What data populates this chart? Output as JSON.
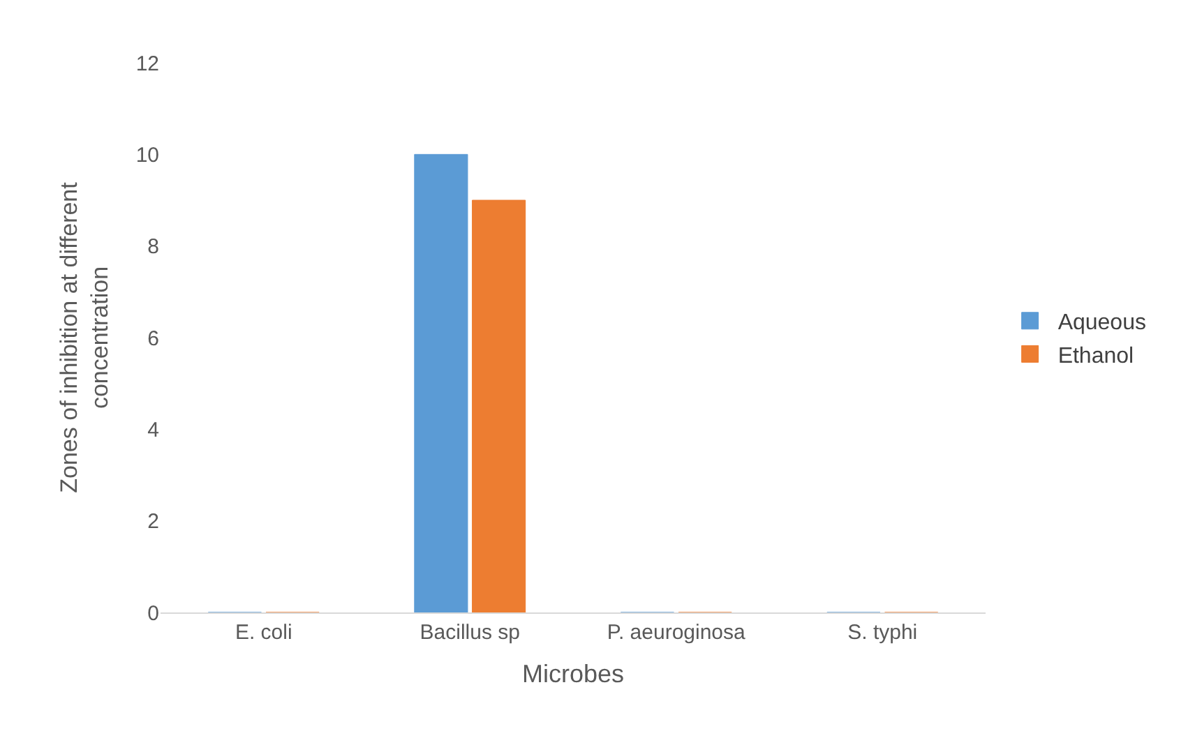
{
  "chart_data": {
    "type": "bar",
    "xlabel": "Microbes",
    "ylabel": "Zones of inhibition at different concentration",
    "categories": [
      "E. coli",
      "Bacillus sp",
      "P. aeuroginosa",
      "S. typhi"
    ],
    "series": [
      {
        "name": "Aqueous",
        "color": "#5b9bd5",
        "values": [
          0,
          10,
          0,
          0
        ]
      },
      {
        "name": "Ethanol",
        "color": "#ed7d31",
        "values": [
          0,
          9,
          0,
          0
        ]
      }
    ],
    "ylim": [
      0,
      12
    ],
    "yticks": [
      0,
      2,
      4,
      6,
      8,
      10,
      12
    ],
    "grid": false,
    "legend": "right"
  }
}
